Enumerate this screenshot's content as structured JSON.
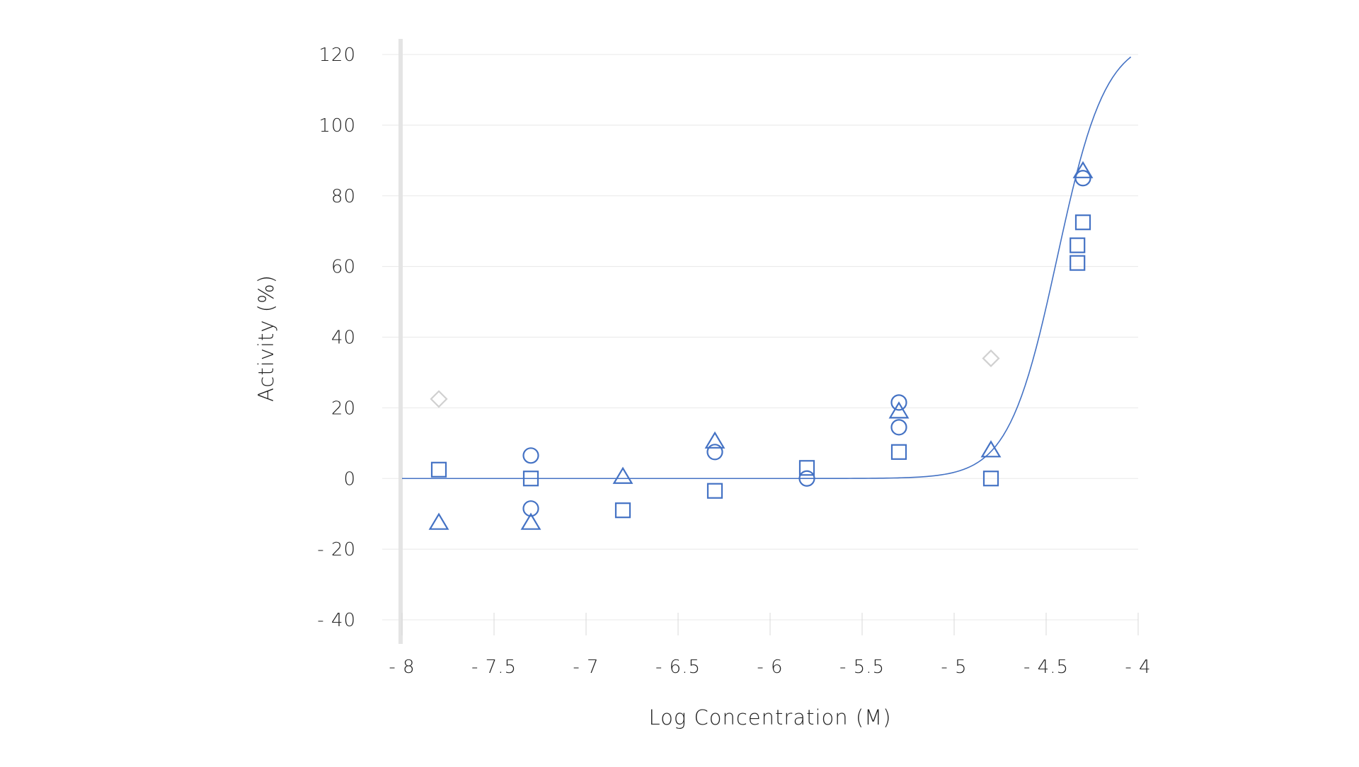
{
  "chart_data": {
    "type": "scatter",
    "title": "",
    "xlabel": "Log Concentration (M)",
    "ylabel": "Activity (%)",
    "xlim": [
      -8,
      -4
    ],
    "ylim": [
      -40,
      120
    ],
    "x_ticks": [
      -8,
      -7.5,
      -7,
      -6.5,
      -6,
      -5.5,
      -5,
      -4.5,
      -4
    ],
    "x_tick_labels": [
      "- 8",
      "- 7.5",
      "- 7",
      "- 6.5",
      "- 6",
      "- 5.5",
      "- 5",
      "- 4.5",
      "- 4"
    ],
    "y_ticks": [
      -40,
      -20,
      0,
      20,
      40,
      60,
      80,
      100,
      120
    ],
    "y_tick_labels": [
      "- 40",
      "- 20",
      "0",
      "20",
      "40",
      "60",
      "80",
      "100",
      "120"
    ],
    "grid": true,
    "marker_color": "#4472C4",
    "outlier_color": "#D0D0D0",
    "curve_color": "#4472C4",
    "series": [
      {
        "marker": "square",
        "x": [
          -7.8,
          -7.3,
          -6.8,
          -6.3,
          -5.8,
          -5.3,
          -4.8,
          -4.3,
          -4.33,
          -4.33
        ],
        "y": [
          2.5,
          0,
          -9,
          -3.5,
          3,
          7.5,
          0,
          72.5,
          66,
          61
        ]
      },
      {
        "marker": "circle",
        "x": [
          -7.3,
          -7.3,
          -6.3,
          -5.8,
          -5.3,
          -5.3,
          -4.3
        ],
        "y": [
          6.5,
          -8.5,
          7.5,
          0,
          21.5,
          14.5,
          85
        ]
      },
      {
        "marker": "triangle",
        "x": [
          -7.8,
          -7.3,
          -6.8,
          -6.3,
          -5.3,
          -4.8,
          -4.3
        ],
        "y": [
          -12.5,
          -12.5,
          0.5,
          10.5,
          19,
          8,
          87
        ]
      },
      {
        "marker": "diamond",
        "outlier": true,
        "x": [
          -7.8,
          -4.8
        ],
        "y": [
          22.5,
          34
        ]
      }
    ],
    "fit_curve": {
      "model": "4PL",
      "bottom": 0,
      "top": 125,
      "log_ec50": -4.44,
      "hill_slope": 3.3,
      "x_range": [
        -8,
        -4.04
      ]
    }
  }
}
